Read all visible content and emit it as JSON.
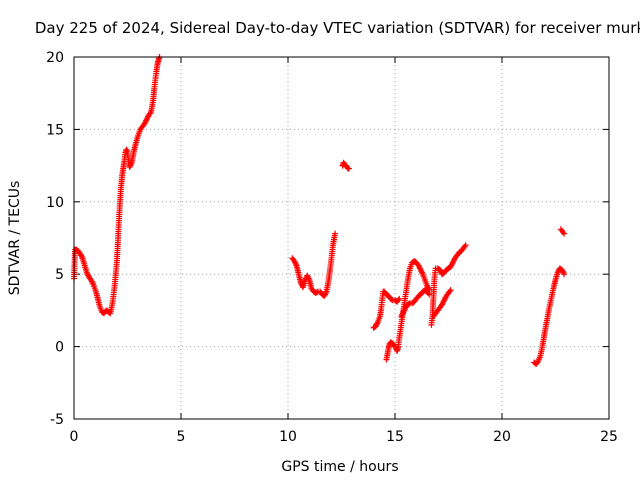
{
  "chart_data": {
    "type": "scatter",
    "title": "Day 225 of 2024, Sidereal Day-to-day VTEC variation (SDTVAR) for receiver murk",
    "xlabel": "GPS time / hours",
    "ylabel": "SDTVAR / TECUs",
    "xlim": [
      0,
      25
    ],
    "ylim": [
      -5,
      20
    ],
    "xticks": [
      0,
      5,
      10,
      15,
      20,
      25
    ],
    "xtick_labels": [
      "0",
      "5",
      "10",
      "15",
      "20",
      "25"
    ],
    "yticks": [
      -5,
      0,
      5,
      10,
      15,
      20
    ],
    "ytick_labels": [
      "-5",
      "0",
      "5",
      "10",
      "15",
      "20"
    ],
    "grid": true,
    "marker": "+",
    "series": [
      {
        "name": "SDTVAR",
        "color": "#ff0000",
        "segments": [
          {
            "x": [
              0.0,
              0.05,
              0.1,
              0.2,
              0.3,
              0.4,
              0.5,
              0.6,
              0.7,
              0.8,
              0.9,
              1.0,
              1.1,
              1.2,
              1.3,
              1.4,
              1.5,
              1.6,
              1.7,
              1.8,
              1.9,
              2.0,
              2.05,
              2.1,
              2.15,
              2.2,
              2.25,
              2.3,
              2.35,
              2.4,
              2.45,
              2.5,
              2.55,
              2.6,
              2.7,
              2.8,
              2.9,
              3.0,
              3.1,
              3.2,
              3.3,
              3.4,
              3.5,
              3.6,
              3.7,
              3.75,
              3.8,
              3.85,
              3.9,
              3.95,
              4.0
            ],
            "y": [
              4.7,
              6.7,
              6.7,
              6.6,
              6.4,
              6.1,
              5.6,
              5.1,
              4.8,
              4.6,
              4.3,
              3.9,
              3.4,
              2.8,
              2.4,
              2.3,
              2.5,
              2.4,
              2.3,
              3.0,
              4.2,
              5.8,
              7.2,
              8.7,
              10.0,
              11.0,
              11.8,
              12.3,
              12.8,
              13.4,
              13.6,
              13.5,
              12.8,
              12.4,
              12.7,
              13.5,
              14.1,
              14.6,
              15.0,
              15.2,
              15.4,
              15.7,
              16.0,
              16.2,
              17.0,
              17.8,
              18.4,
              19.0,
              19.5,
              19.8,
              20.0
            ]
          },
          {
            "x": [
              10.2,
              10.3,
              10.4,
              10.5,
              10.6,
              10.7,
              10.8,
              10.9,
              11.0,
              11.1,
              11.2,
              11.3,
              11.4,
              11.5,
              11.6,
              11.7,
              11.8,
              11.9,
              12.0,
              12.1,
              12.2
            ],
            "y": [
              6.1,
              5.9,
              5.6,
              5.0,
              4.4,
              4.1,
              4.6,
              4.9,
              4.6,
              4.0,
              3.8,
              3.7,
              3.8,
              3.8,
              3.6,
              3.5,
              3.8,
              4.6,
              5.7,
              7.0,
              7.8
            ]
          },
          {
            "x": [
              12.55,
              12.6,
              12.65,
              12.7,
              12.75,
              12.8,
              12.85
            ],
            "y": [
              12.5,
              12.7,
              12.6,
              12.5,
              12.4,
              12.3,
              12.3
            ]
          },
          {
            "x": [
              14.0,
              14.1,
              14.2,
              14.3,
              14.35,
              14.4,
              14.45,
              14.5,
              14.6,
              14.7,
              14.8,
              14.9,
              15.0,
              15.1,
              15.2
            ],
            "y": [
              1.3,
              1.4,
              1.7,
              2.1,
              2.6,
              3.2,
              3.8,
              3.8,
              3.6,
              3.5,
              3.3,
              3.2,
              3.2,
              3.1,
              3.3
            ]
          },
          {
            "x": [
              14.6,
              14.65,
              14.7,
              14.75,
              14.8,
              14.9,
              15.0,
              15.1,
              15.15,
              15.2,
              15.3,
              15.4,
              15.5,
              15.6,
              15.7,
              15.8,
              15.9,
              16.0,
              16.1,
              16.2,
              16.3,
              16.4,
              16.5,
              16.6
            ],
            "y": [
              -0.9,
              -0.5,
              -0.1,
              0.2,
              0.3,
              0.2,
              0.0,
              -0.3,
              0.0,
              0.6,
              1.6,
              2.6,
              3.6,
              4.6,
              5.4,
              5.8,
              5.9,
              5.8,
              5.6,
              5.3,
              5.0,
              4.6,
              4.2,
              3.9
            ]
          },
          {
            "x": [
              15.3,
              15.4,
              15.5,
              15.6,
              15.7,
              15.8,
              15.9,
              16.0,
              16.1,
              16.2,
              16.3,
              16.4,
              16.5,
              16.6
            ],
            "y": [
              2.1,
              2.4,
              2.7,
              2.9,
              3.0,
              3.0,
              3.1,
              3.3,
              3.5,
              3.6,
              3.8,
              3.9,
              3.8,
              3.6
            ]
          },
          {
            "x": [
              16.7,
              16.75,
              16.8,
              16.85,
              16.9,
              17.0,
              17.1,
              17.2,
              17.3,
              17.4,
              17.5,
              17.6,
              17.7,
              17.8,
              17.9,
              18.0,
              18.1,
              18.2,
              18.3
            ],
            "y": [
              1.5,
              2.1,
              3.5,
              4.8,
              5.4,
              5.4,
              5.3,
              5.0,
              5.1,
              5.3,
              5.4,
              5.5,
              5.8,
              6.1,
              6.3,
              6.5,
              6.6,
              6.8,
              7.0
            ]
          },
          {
            "x": [
              16.8,
              16.9,
              17.0,
              17.1,
              17.2,
              17.3,
              17.4,
              17.5,
              17.6
            ],
            "y": [
              2.1,
              2.3,
              2.5,
              2.7,
              2.9,
              3.2,
              3.5,
              3.7,
              3.9
            ]
          },
          {
            "x": [
              21.5,
              21.6,
              21.7,
              21.8,
              21.9,
              22.0,
              22.1,
              22.2,
              22.3,
              22.4,
              22.5,
              22.6,
              22.7,
              22.8,
              22.85,
              22.9
            ],
            "y": [
              -1.1,
              -1.2,
              -1.0,
              -0.6,
              0.1,
              1.0,
              1.8,
              2.6,
              3.3,
              4.0,
              4.6,
              5.1,
              5.4,
              5.3,
              5.2,
              5.0
            ]
          },
          {
            "x": [
              22.75,
              22.8,
              22.85,
              22.9
            ],
            "y": [
              8.1,
              8.0,
              7.9,
              7.8
            ]
          }
        ]
      }
    ]
  }
}
